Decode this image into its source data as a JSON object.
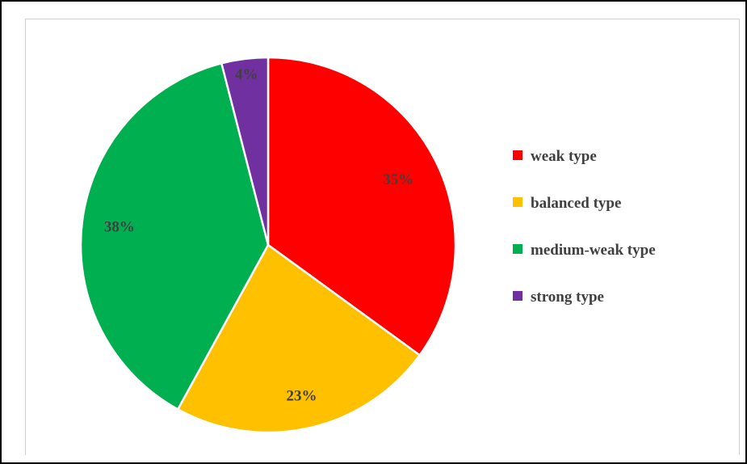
{
  "chart_data": {
    "type": "pie",
    "title": "",
    "slices": [
      {
        "label": "weak type",
        "value": 35,
        "display": "35%",
        "color": "#FF0000"
      },
      {
        "label": "balanced type",
        "value": 23,
        "display": "23%",
        "color": "#FFC000"
      },
      {
        "label": "medium-weak type",
        "value": 38,
        "display": "38%",
        "color": "#00B050"
      },
      {
        "label": "strong type",
        "value": 4,
        "display": "4%",
        "color": "#7030A0"
      }
    ],
    "start_angle_deg": 0,
    "direction": "clockwise",
    "legend_position": "right"
  }
}
